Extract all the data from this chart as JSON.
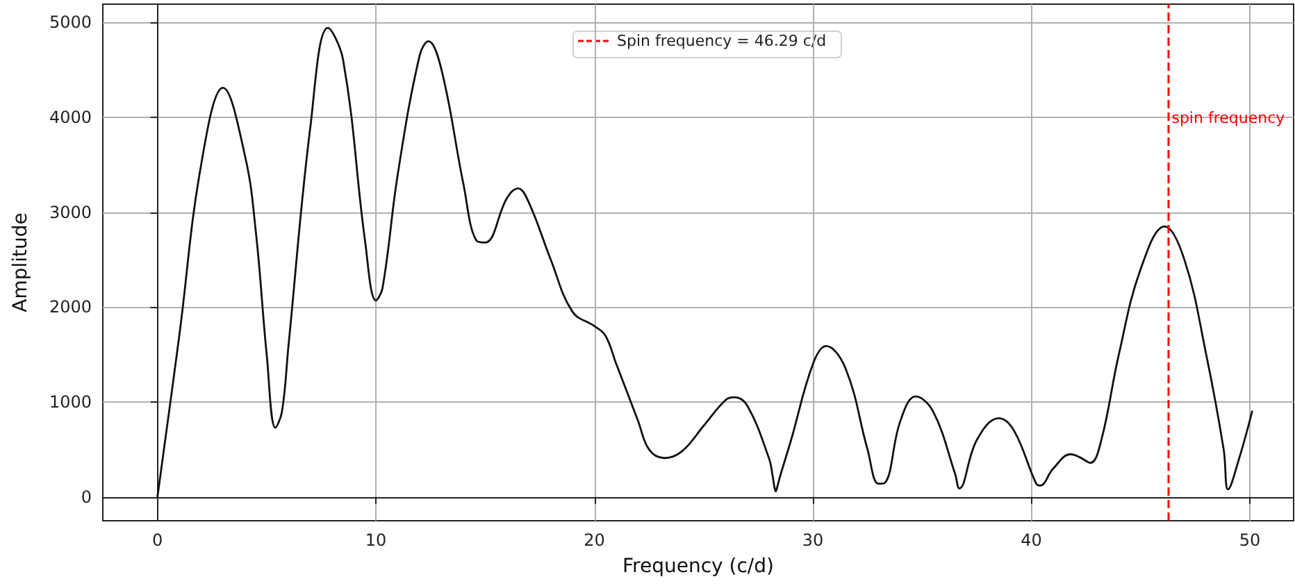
{
  "chart_data": {
    "type": "line",
    "xlabel": "Frequency (c/d)",
    "ylabel": "Amplitude",
    "x": [
      0,
      1,
      2,
      3,
      4,
      4.5,
      5,
      5.4,
      5.7,
      6,
      7,
      7.8,
      8.5,
      9.5,
      10,
      10.3,
      11,
      12,
      12.4,
      13,
      14,
      14.6,
      15,
      16,
      16.5,
      17,
      18,
      19,
      20,
      20.5,
      21,
      22,
      22.5,
      23.2,
      24,
      25,
      26,
      26.4,
      27,
      28,
      28.15,
      28.25,
      28.3,
      28.35,
      28.5,
      29,
      30,
      30.6,
      31.5,
      32.5,
      33,
      33.3,
      34,
      34.7,
      35.5,
      36.5,
      36.7,
      37.5,
      38.5,
      39.2,
      40.2,
      40.4,
      41,
      41.8,
      42.2,
      42.7,
      43.2,
      44,
      45,
      46.1,
      47,
      48,
      48.8,
      49,
      49.5,
      50.1
    ],
    "series": [
      {
        "color": "#111111",
        "values": [
          0,
          1700,
          3500,
          4310,
          3600,
          2800,
          1500,
          730,
          900,
          1600,
          3900,
          4940,
          4600,
          2700,
          2070,
          2200,
          3400,
          4650,
          4800,
          4500,
          3300,
          2700,
          2680,
          3150,
          3250,
          3100,
          2500,
          1950,
          1800,
          1700,
          1400,
          800,
          500,
          410,
          480,
          750,
          1020,
          1050,
          960,
          400,
          230,
          90,
          60,
          90,
          220,
          600,
          1400,
          1590,
          1350,
          500,
          140,
          150,
          800,
          1060,
          900,
          250,
          90,
          600,
          830,
          700,
          150,
          120,
          300,
          450,
          420,
          360,
          600,
          1500,
          2400,
          2850,
          2500,
          1500,
          500,
          80,
          400,
          900
        ]
      }
    ],
    "xlim": [
      -2.5,
      52
    ],
    "ylim": [
      -250,
      5190
    ],
    "xticks": [
      0,
      10,
      20,
      30,
      40,
      50
    ],
    "yticks": [
      0,
      1000,
      2000,
      3000,
      4000,
      5000
    ],
    "ref_lines": [
      {
        "axis": "x",
        "value": 46.29,
        "label": "spin frequency",
        "color": "#ff0000",
        "line_style": "dashed"
      }
    ],
    "annotations": [
      "Spin frequency = 46.29 c/d"
    ],
    "grid": true,
    "legend": "top",
    "marker": "none",
    "line_style": "solid"
  }
}
